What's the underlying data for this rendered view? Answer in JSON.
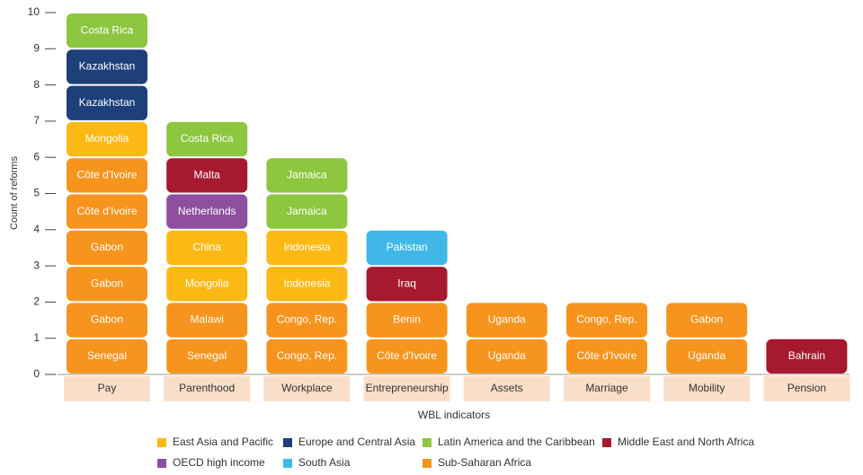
{
  "chart_data": {
    "type": "stacked-blocks",
    "y_label": "Count of reforms",
    "x_label": "WBL indicators",
    "ylim": [
      0,
      10
    ],
    "yticks": [
      0,
      1,
      2,
      3,
      4,
      5,
      6,
      7,
      8,
      9,
      10
    ],
    "categories": [
      "Pay",
      "Parenthood",
      "Workplace",
      "Entrepreneurship",
      "Assets",
      "Marriage",
      "Mobility",
      "Pension"
    ],
    "series": [
      {
        "name": "East Asia and Pacific",
        "color": "#fdb913"
      },
      {
        "name": "Europe and Central Asia",
        "color": "#1d3f7a"
      },
      {
        "name": "Latin America and the Caribbean",
        "color": "#8dc63f"
      },
      {
        "name": "Middle East and North Africa",
        "color": "#a6192e"
      },
      {
        "name": "OECD high income",
        "color": "#8e4fa0"
      },
      {
        "name": "South Asia",
        "color": "#3fb8e8"
      },
      {
        "name": "Sub-Saharan Africa",
        "color": "#f7941d"
      }
    ],
    "stacks": [
      [
        {
          "label": "Senegal",
          "region": "Sub-Saharan Africa",
          "value": 1
        },
        {
          "label": "Gabon",
          "region": "Sub-Saharan Africa",
          "value": 1
        },
        {
          "label": "Gabon",
          "region": "Sub-Saharan Africa",
          "value": 1
        },
        {
          "label": "Gabon",
          "region": "Sub-Saharan Africa",
          "value": 1
        },
        {
          "label": "Côte d'Ivoire",
          "region": "Sub-Saharan Africa",
          "value": 1
        },
        {
          "label": "Côte d'Ivoire",
          "region": "Sub-Saharan Africa",
          "value": 1
        },
        {
          "label": "Mongolia",
          "region": "East Asia and Pacific",
          "value": 1
        },
        {
          "label": "Kazakhstan",
          "region": "Europe and Central Asia",
          "value": 1
        },
        {
          "label": "Kazakhstan",
          "region": "Europe and Central Asia",
          "value": 1
        },
        {
          "label": "Costa Rica",
          "region": "Latin America and the Caribbean",
          "value": 1
        }
      ],
      [
        {
          "label": "Senegal",
          "region": "Sub-Saharan Africa",
          "value": 1
        },
        {
          "label": "Malawi",
          "region": "Sub-Saharan Africa",
          "value": 1
        },
        {
          "label": "Mongolia",
          "region": "East Asia and Pacific",
          "value": 1
        },
        {
          "label": "China",
          "region": "East Asia and Pacific",
          "value": 1
        },
        {
          "label": "Netherlands",
          "region": "OECD high income",
          "value": 1
        },
        {
          "label": "Malta",
          "region": "Middle East and North Africa",
          "value": 1
        },
        {
          "label": "Costa Rica",
          "region": "Latin America and the Caribbean",
          "value": 1
        }
      ],
      [
        {
          "label": "Congo, Rep.",
          "region": "Sub-Saharan Africa",
          "value": 1
        },
        {
          "label": "Congo, Rep.",
          "region": "Sub-Saharan Africa",
          "value": 1
        },
        {
          "label": "Indonesia",
          "region": "East Asia and Pacific",
          "value": 1
        },
        {
          "label": "Indonesia",
          "region": "East Asia and Pacific",
          "value": 1
        },
        {
          "label": "Jamaica",
          "region": "Latin America and the Caribbean",
          "value": 1
        },
        {
          "label": "Jamaica",
          "region": "Latin America and the Caribbean",
          "value": 1
        }
      ],
      [
        {
          "label": "Côte d'Ivoire",
          "region": "Sub-Saharan Africa",
          "value": 1
        },
        {
          "label": "Benin",
          "region": "Sub-Saharan Africa",
          "value": 1
        },
        {
          "label": "Iraq",
          "region": "Middle East and North Africa",
          "value": 1
        },
        {
          "label": "Pakistan",
          "region": "South Asia",
          "value": 1
        }
      ],
      [
        {
          "label": "Uganda",
          "region": "Sub-Saharan Africa",
          "value": 1
        },
        {
          "label": "Uganda",
          "region": "Sub-Saharan Africa",
          "value": 1
        }
      ],
      [
        {
          "label": "Côte d'Ivoire",
          "region": "Sub-Saharan Africa",
          "value": 1
        },
        {
          "label": "Congo, Rep.",
          "region": "Sub-Saharan Africa",
          "value": 1
        }
      ],
      [
        {
          "label": "Uganda",
          "region": "Sub-Saharan Africa",
          "value": 1
        },
        {
          "label": "Gabon",
          "region": "Sub-Saharan Africa",
          "value": 1
        }
      ],
      [
        {
          "label": "Bahrain",
          "region": "Middle East and North Africa",
          "value": 1
        }
      ]
    ]
  }
}
